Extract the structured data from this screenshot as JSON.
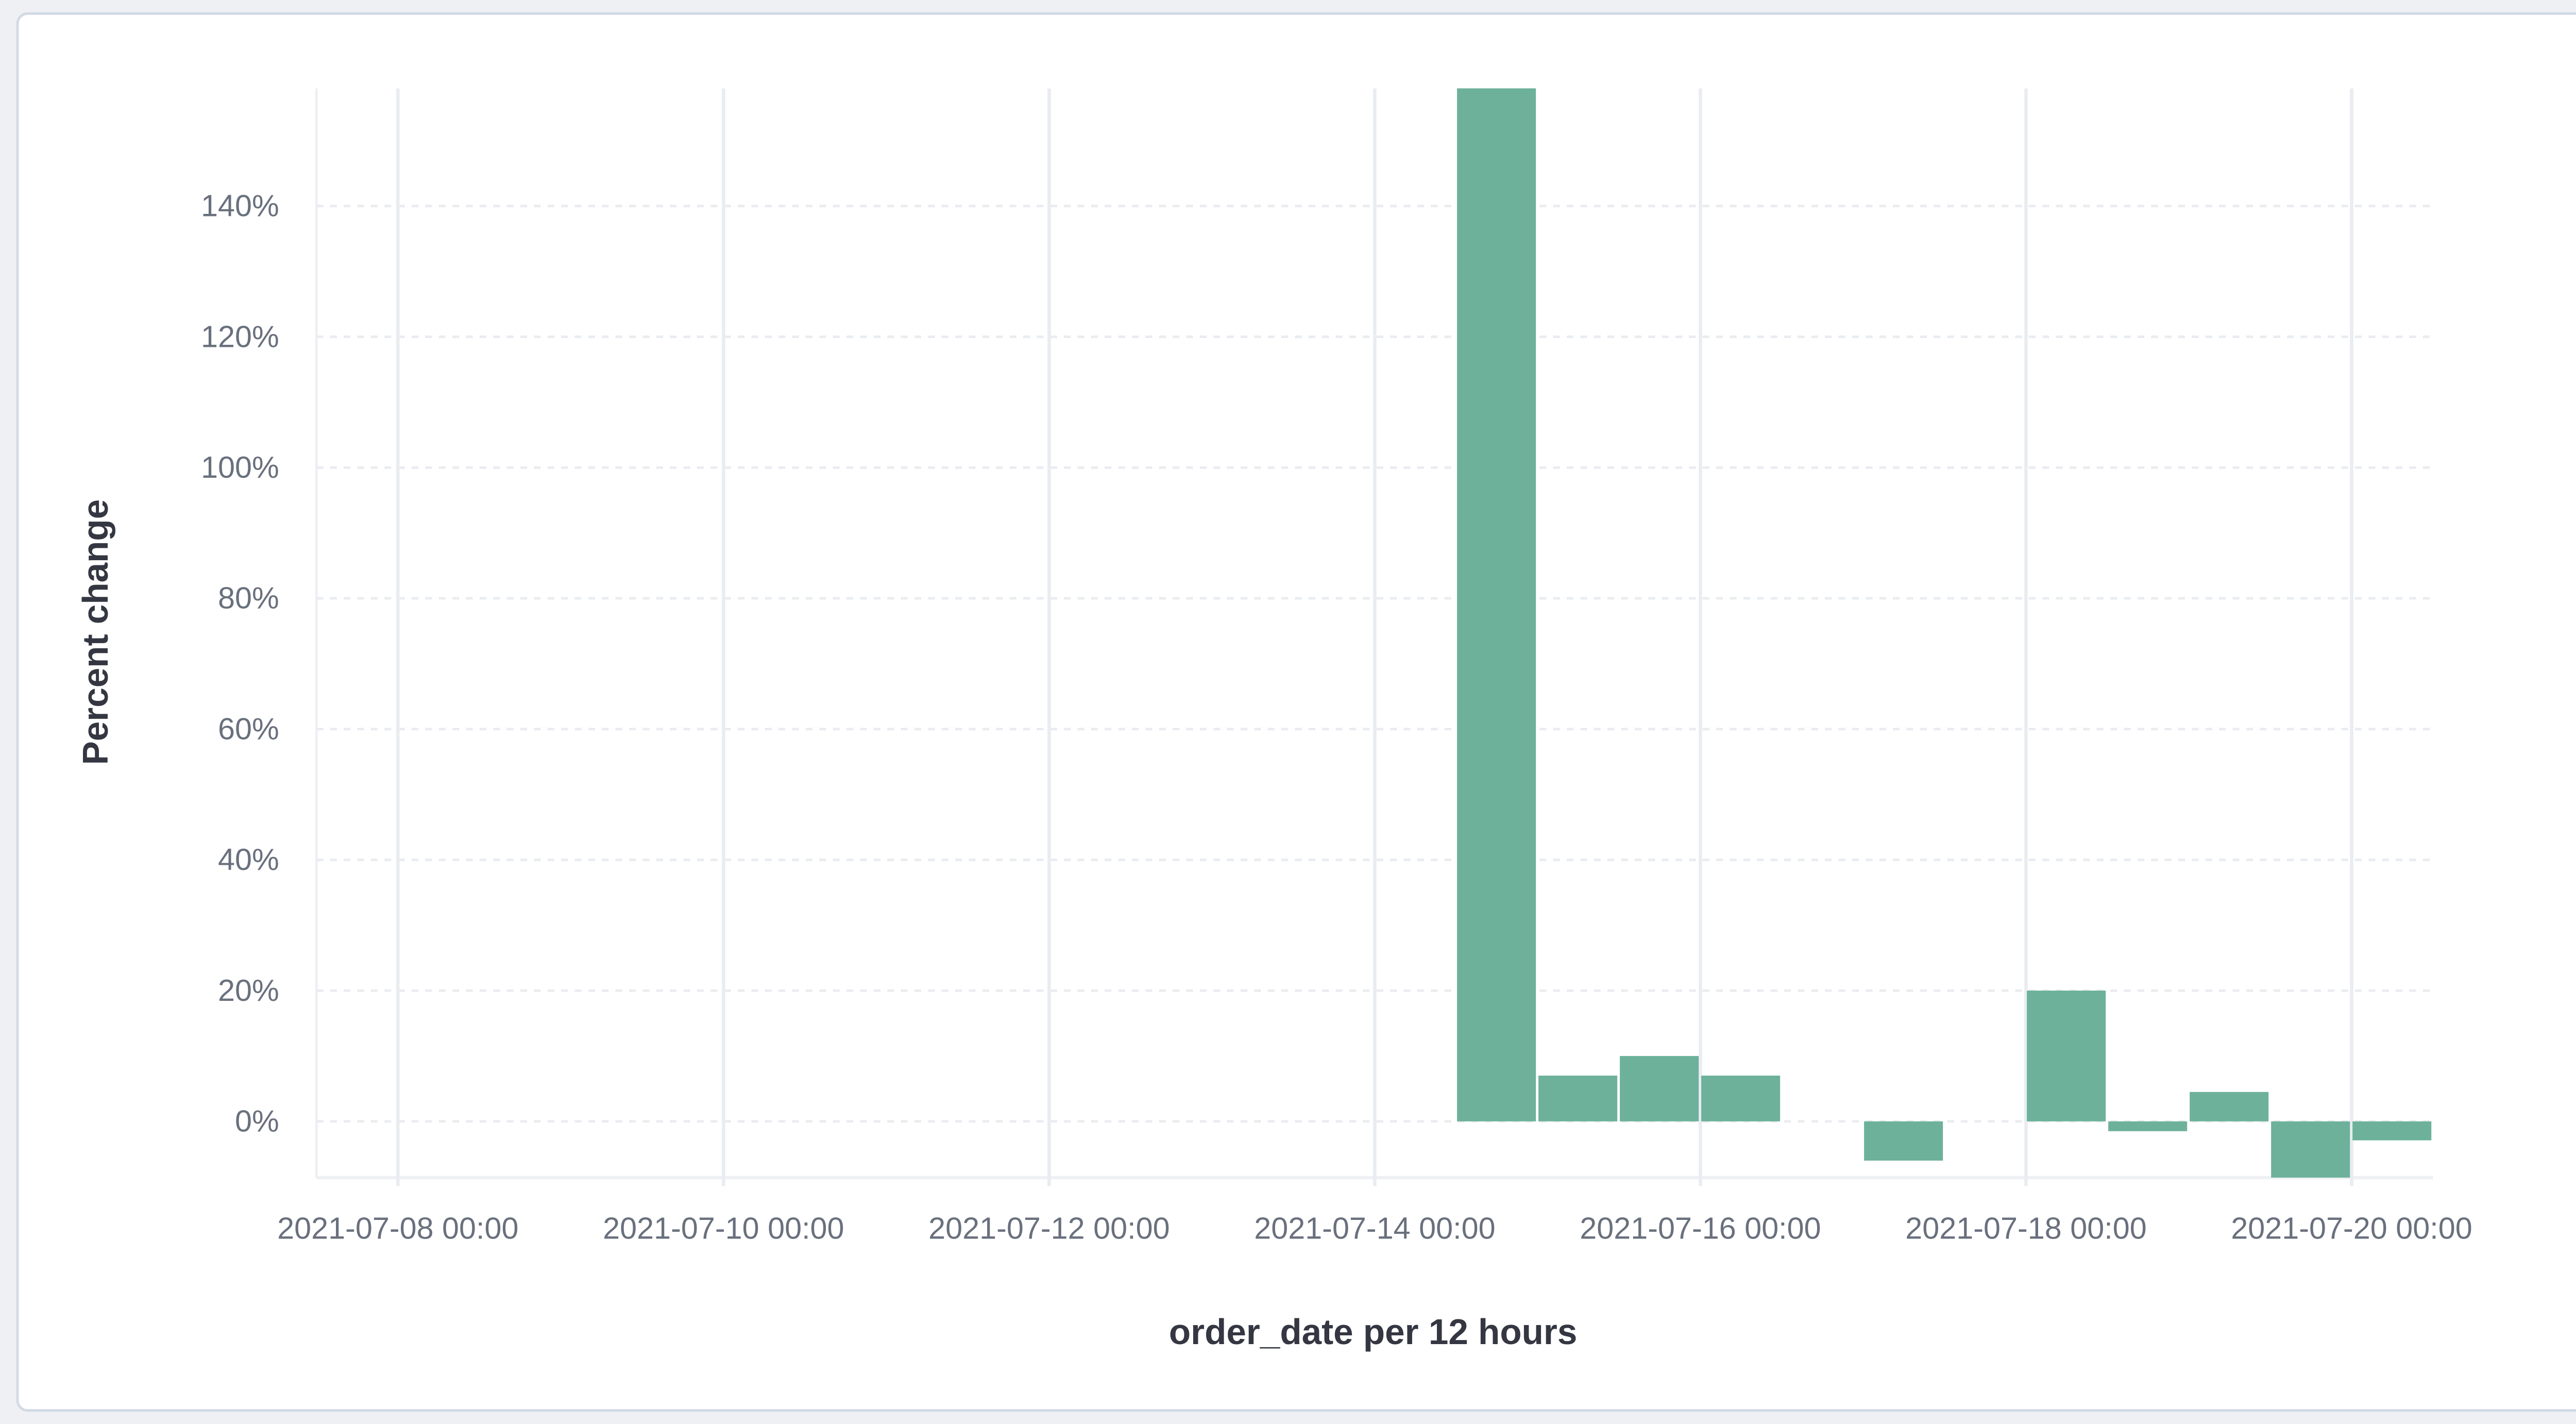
{
  "chart_data": {
    "type": "bar",
    "xlabel": "order_date per 12 hours",
    "ylabel": "Percent change",
    "x_domain": [
      "2021-07-07 12:00",
      "2021-07-20 12:00"
    ],
    "ylim": [
      -8.6,
      158
    ],
    "y_ticks": [
      0,
      20,
      40,
      60,
      80,
      100,
      120,
      140
    ],
    "y_tick_labels": [
      "0%",
      "20%",
      "40%",
      "60%",
      "80%",
      "100%",
      "120%",
      "140%"
    ],
    "x_ticks": [
      "2021-07-08 00:00",
      "2021-07-10 00:00",
      "2021-07-12 00:00",
      "2021-07-14 00:00",
      "2021-07-16 00:00",
      "2021-07-18 00:00",
      "2021-07-20 00:00"
    ],
    "grid": true,
    "interval_hours": 12,
    "bar_color": "#6db19a",
    "points": [
      {
        "x": "2021-07-14 12:00",
        "y": 158
      },
      {
        "x": "2021-07-15 00:00",
        "y": 7
      },
      {
        "x": "2021-07-15 12:00",
        "y": 10
      },
      {
        "x": "2021-07-16 00:00",
        "y": 7
      },
      {
        "x": "2021-07-17 00:00",
        "y": -6
      },
      {
        "x": "2021-07-18 00:00",
        "y": 20
      },
      {
        "x": "2021-07-18 12:00",
        "y": -1.5
      },
      {
        "x": "2021-07-19 00:00",
        "y": 4.5
      },
      {
        "x": "2021-07-19 12:00",
        "y": -8.6
      },
      {
        "x": "2021-07-20 00:00",
        "y": -2.9
      }
    ]
  }
}
